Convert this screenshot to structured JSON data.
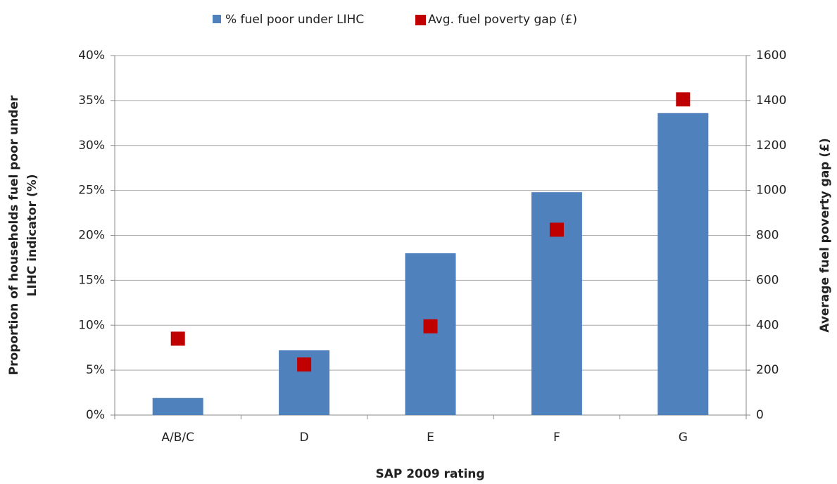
{
  "chart_data": {
    "type": "bar+scatter",
    "xlabel": "SAP 2009 rating",
    "ylabel": [
      "Proportion of households fuel poor under",
      "LIHC indicator (%)"
    ],
    "y2label": "Average fuel poverty gap (£)",
    "categories": [
      "A/B/C",
      "D",
      "E",
      "F",
      "G"
    ],
    "series": [
      {
        "name": "% fuel poor under LIHC",
        "type": "bar",
        "color": "#4f81bd",
        "values": [
          1.9,
          7.2,
          18.0,
          24.8,
          33.6
        ]
      },
      {
        "name": "Avg. fuel poverty gap (£)",
        "type": "scatter",
        "axis": "y2",
        "color": "#c00000",
        "values": [
          340,
          225,
          395,
          825,
          1405
        ]
      }
    ],
    "ylim": [
      0,
      40
    ],
    "yticks": [
      {
        "value": 0,
        "label": "0%"
      },
      {
        "value": 5,
        "label": "5%"
      },
      {
        "value": 10,
        "label": "10%"
      },
      {
        "value": 15,
        "label": "15%"
      },
      {
        "value": 20,
        "label": "20%"
      },
      {
        "value": 25,
        "label": "25%"
      },
      {
        "value": 30,
        "label": "30%"
      },
      {
        "value": 35,
        "label": "35%"
      },
      {
        "value": 40,
        "label": "40%"
      }
    ],
    "y2lim": [
      0,
      1600
    ],
    "y2ticks": [
      0,
      200,
      400,
      600,
      800,
      1000,
      1200,
      1400,
      1600
    ],
    "grid": true,
    "legend": "top"
  }
}
